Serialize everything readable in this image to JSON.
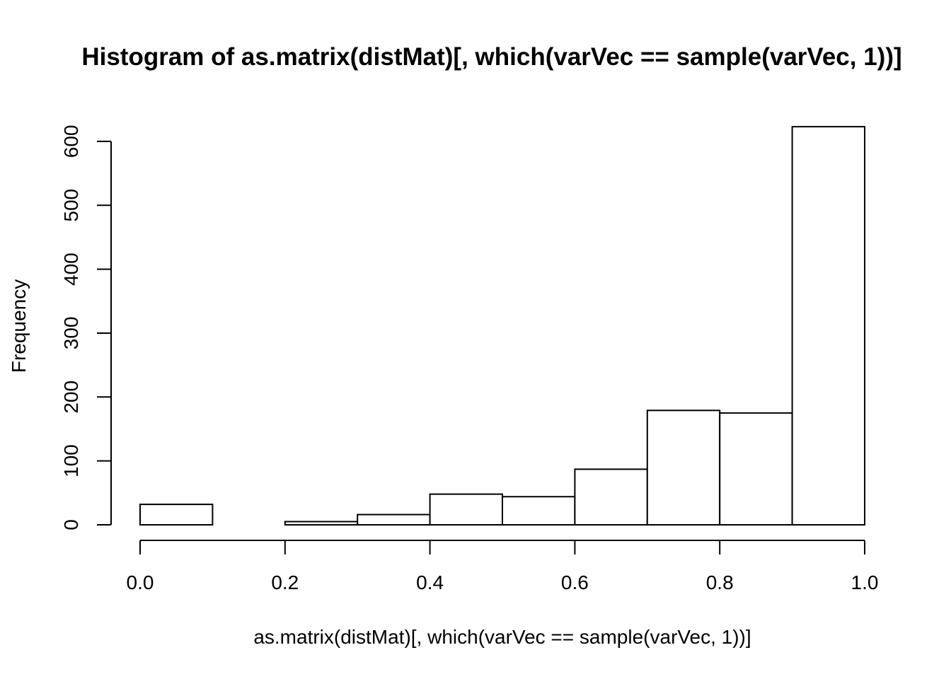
{
  "chart_data": {
    "type": "bar",
    "title": "Histogram of as.matrix(distMat)[, which(varVec == sample(varVec, 1))]",
    "xlabel": "as.matrix(distMat)[, which(varVec == sample(varVec, 1))]",
    "ylabel": "Frequency",
    "bins": [
      {
        "x0": 0.0,
        "x1": 0.1,
        "count": 32
      },
      {
        "x0": 0.1,
        "x1": 0.2,
        "count": 0
      },
      {
        "x0": 0.2,
        "x1": 0.3,
        "count": 5
      },
      {
        "x0": 0.3,
        "x1": 0.4,
        "count": 16
      },
      {
        "x0": 0.4,
        "x1": 0.5,
        "count": 48
      },
      {
        "x0": 0.5,
        "x1": 0.6,
        "count": 44
      },
      {
        "x0": 0.6,
        "x1": 0.7,
        "count": 87
      },
      {
        "x0": 0.7,
        "x1": 0.8,
        "count": 179
      },
      {
        "x0": 0.8,
        "x1": 0.9,
        "count": 175
      },
      {
        "x0": 0.9,
        "x1": 1.0,
        "count": 623
      }
    ],
    "xlim": [
      0,
      1
    ],
    "ylim": [
      0,
      623
    ],
    "x_ticks": [
      "0.0",
      "0.2",
      "0.4",
      "0.6",
      "0.8",
      "1.0"
    ],
    "y_ticks": [
      "0",
      "100",
      "200",
      "300",
      "400",
      "500",
      "600"
    ],
    "grid": false,
    "legend": "none"
  }
}
